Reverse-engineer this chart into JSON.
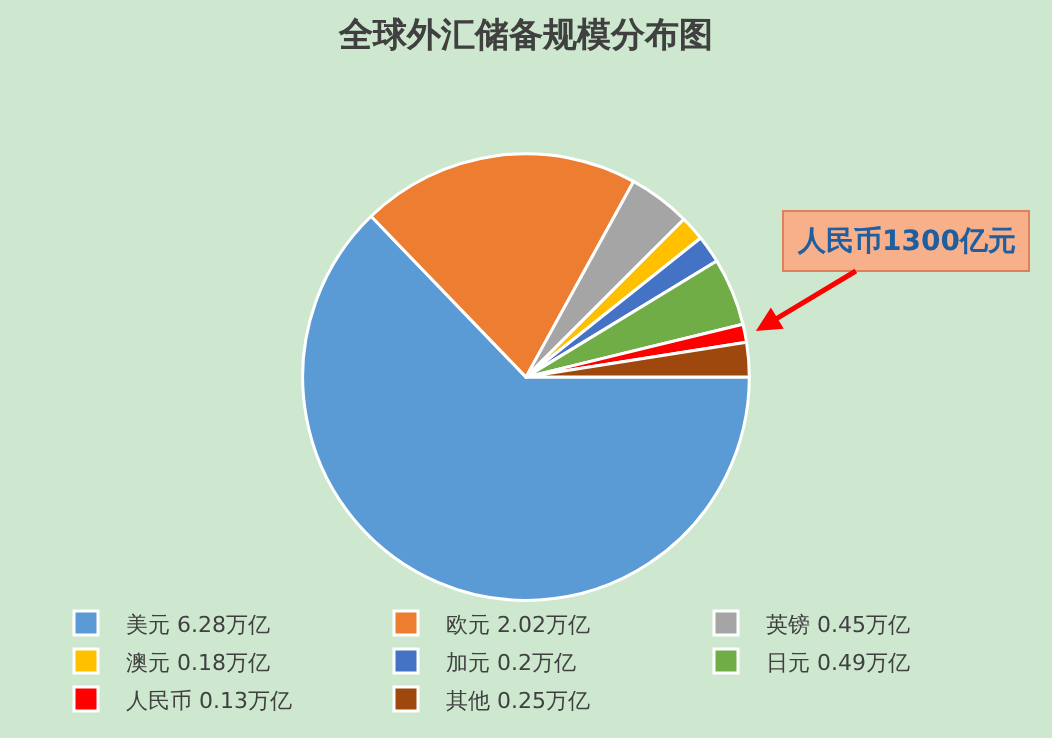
{
  "chart_data": {
    "type": "pie",
    "title": "全球外汇储备规模分布图",
    "categories": [
      "美元 6.28万亿",
      "欧元 2.02万亿",
      "英镑 0.45万亿",
      "澳元 0.18万亿",
      "加元 0.2万亿",
      "日元 0.49万亿",
      "人民币 0.13万亿",
      "其他 0.25万亿"
    ],
    "values": [
      6.28,
      2.02,
      0.45,
      0.18,
      0.2,
      0.49,
      0.13,
      0.25
    ],
    "colors": [
      "#5b9bd5",
      "#ed7d31",
      "#a5a5a5",
      "#ffc000",
      "#4472c4",
      "#70ad47",
      "#ff0000",
      "#9e480e"
    ],
    "annotations": [
      {
        "text": "人民币1300亿元",
        "x": "人民币 0.13万亿"
      }
    ],
    "legend": "bottom"
  }
}
